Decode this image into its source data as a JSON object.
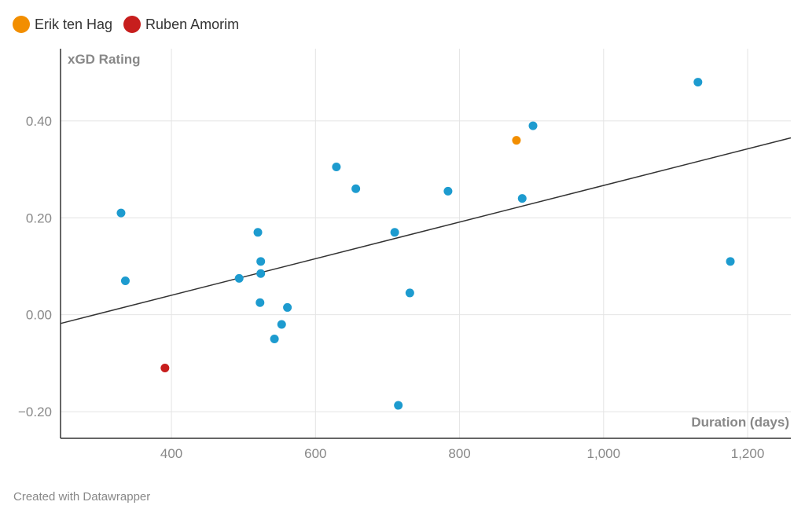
{
  "legend": [
    {
      "label": "Erik ten Hag",
      "color": "#f28e00"
    },
    {
      "label": "Ruben Amorim",
      "color": "#c71e1d"
    }
  ],
  "footer": "Created with Datawrapper",
  "chart_data": {
    "type": "scatter",
    "xlabel": "Duration (days)",
    "ylabel": "xGD Rating",
    "xlim": [
      246,
      1260
    ],
    "ylim": [
      -0.255,
      0.549
    ],
    "xticks": [
      400,
      600,
      800,
      1000,
      1200
    ],
    "xtick_labels": [
      "400",
      "600",
      "800",
      "1,000",
      "1,200"
    ],
    "yticks": [
      -0.2,
      0,
      0.2,
      0.4
    ],
    "ytick_labels": [
      "−0.20",
      "0.00",
      "0.20",
      "0.40"
    ],
    "grid": true,
    "default_color": "#1d9bcf",
    "points": [
      {
        "x": 1131,
        "y": 0.48
      },
      {
        "x": 902,
        "y": 0.39
      },
      {
        "x": 879,
        "y": 0.36,
        "series": "Erik ten Hag"
      },
      {
        "x": 629,
        "y": 0.305
      },
      {
        "x": 656,
        "y": 0.26
      },
      {
        "x": 784,
        "y": 0.255
      },
      {
        "x": 887,
        "y": 0.24
      },
      {
        "x": 330,
        "y": 0.21
      },
      {
        "x": 520,
        "y": 0.17
      },
      {
        "x": 710,
        "y": 0.17
      },
      {
        "x": 524,
        "y": 0.11
      },
      {
        "x": 1176,
        "y": 0.11
      },
      {
        "x": 524,
        "y": 0.085
      },
      {
        "x": 336,
        "y": 0.07
      },
      {
        "x": 494,
        "y": 0.075
      },
      {
        "x": 731,
        "y": 0.045
      },
      {
        "x": 523,
        "y": 0.025
      },
      {
        "x": 561,
        "y": 0.015
      },
      {
        "x": 553,
        "y": -0.02
      },
      {
        "x": 543,
        "y": -0.05
      },
      {
        "x": 391,
        "y": -0.11,
        "series": "Ruben Amorim"
      },
      {
        "x": 715,
        "y": -0.187
      }
    ],
    "trendline": {
      "x": [
        246,
        1260
      ],
      "y": [
        -0.018,
        0.365
      ]
    }
  }
}
